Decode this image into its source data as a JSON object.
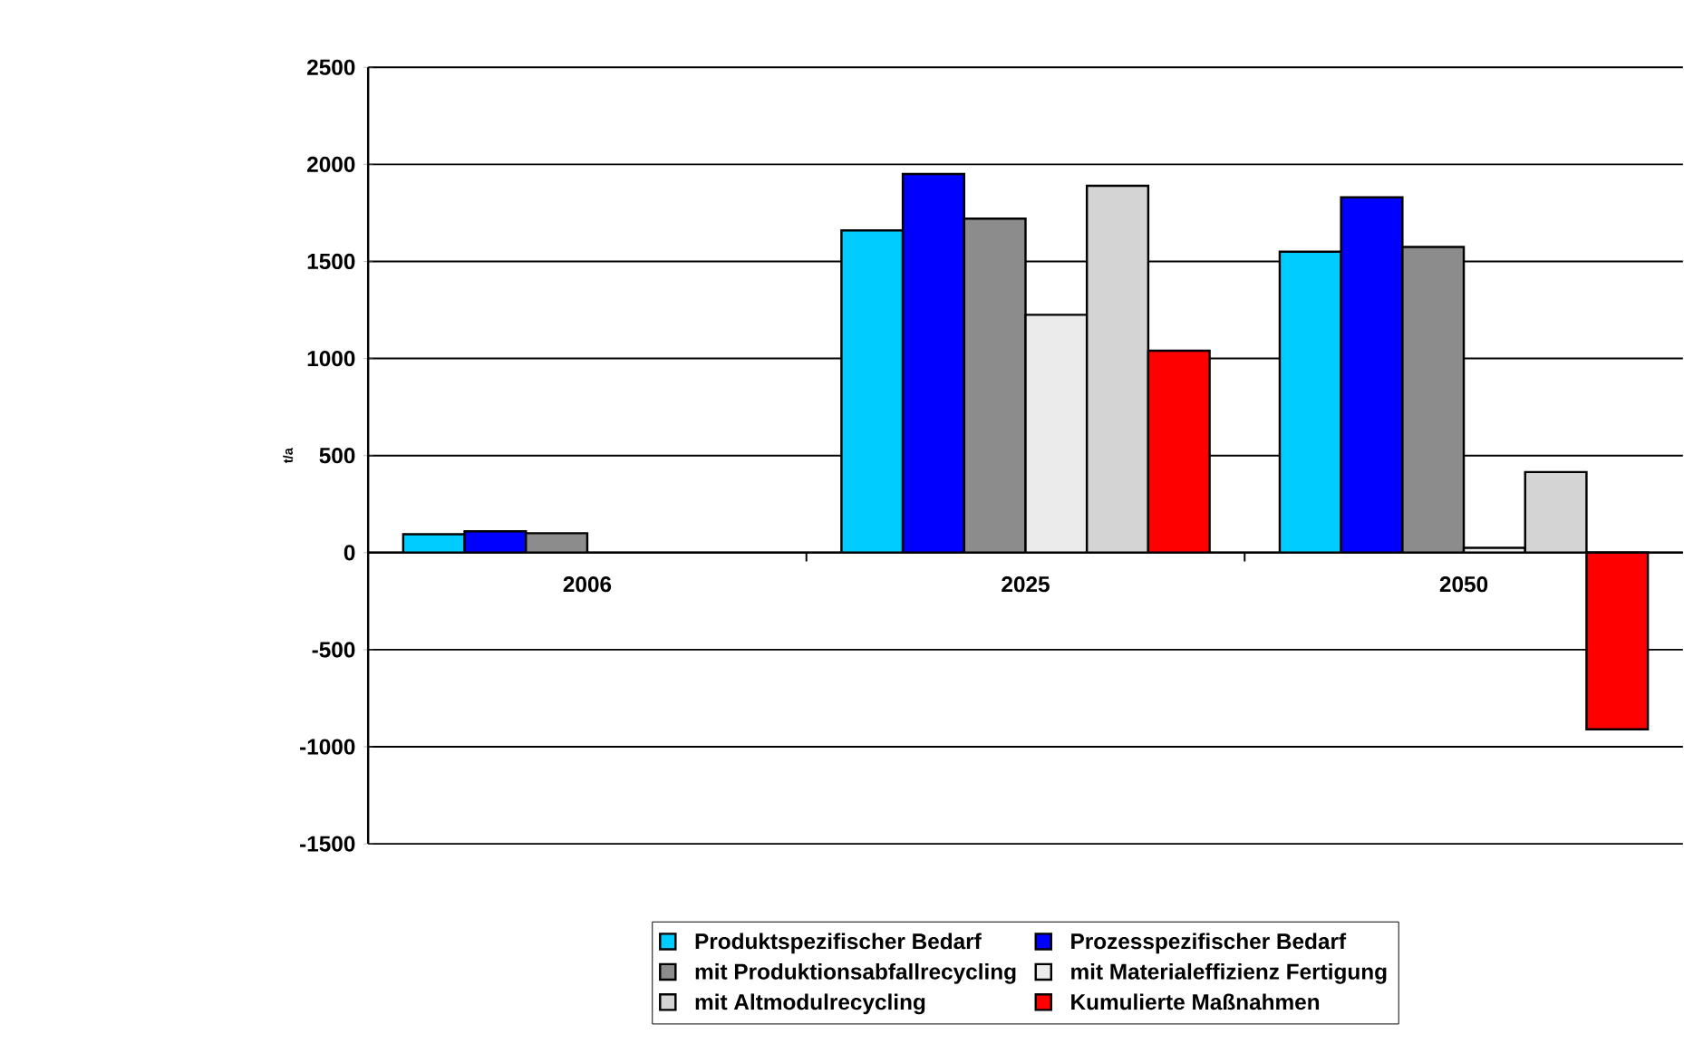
{
  "chart_data": {
    "type": "bar",
    "ylabel": "t/a",
    "categories": [
      "2006",
      "2025",
      "2050"
    ],
    "series": [
      {
        "name": "Produktspezifischer Bedarf",
        "color": "#00ccff",
        "values": [
          95,
          1660,
          1550
        ]
      },
      {
        "name": "Prozesspezifischer Bedarf",
        "color": "#0000ff",
        "values": [
          110,
          1950,
          1830
        ]
      },
      {
        "name": "mit Produktionsabfallrecycling",
        "color": "#8c8c8c",
        "values": [
          100,
          1720,
          1575
        ]
      },
      {
        "name": "mit Materialeffizienz Fertigung",
        "color": "#ebebeb",
        "values": [
          null,
          1225,
          25
        ]
      },
      {
        "name": "mit Altmodulrecycling",
        "color": "#d4d4d4",
        "values": [
          null,
          1890,
          415
        ]
      },
      {
        "name": "Kumulierte Maßnahmen",
        "color": "#ff0000",
        "values": [
          null,
          1040,
          -910
        ]
      }
    ],
    "ylim": [
      -1500,
      2500
    ],
    "yticks": [
      -1500,
      -1000,
      -500,
      0,
      500,
      1000,
      1500,
      2000,
      2500
    ],
    "grid": "y",
    "legend": "bottom"
  }
}
